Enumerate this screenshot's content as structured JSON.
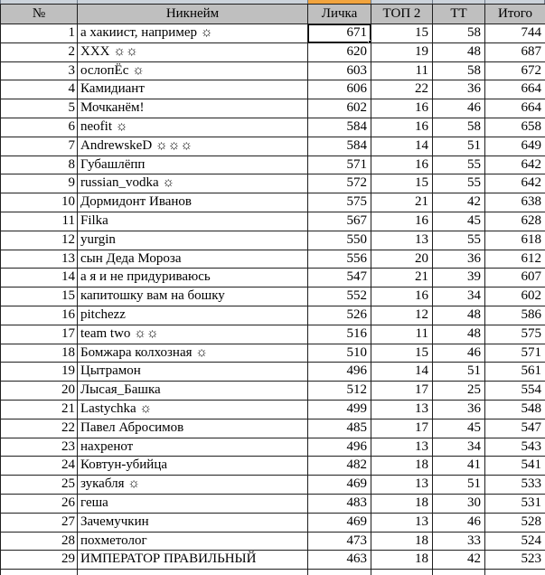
{
  "colors": {
    "header_bg": "#bfbfbf",
    "grid_border": "#1f1f1f",
    "strip_bg": "#ccd3db",
    "strip_tick": "#6e7987",
    "strip_highlight": "#f2a43d",
    "selection_border": "#000000",
    "cell_bg": "#ffffff",
    "text": "#000000"
  },
  "table": {
    "columns": [
      {
        "key": "num",
        "label": "№",
        "align": "right"
      },
      {
        "key": "nickname",
        "label": "Никнейм",
        "align": "left"
      },
      {
        "key": "lichka",
        "label": "Личка",
        "align": "right"
      },
      {
        "key": "top2",
        "label": "ТОП 2",
        "align": "right"
      },
      {
        "key": "tt",
        "label": "ТТ",
        "align": "right"
      },
      {
        "key": "total",
        "label": "Итого",
        "align": "right"
      }
    ],
    "rows": [
      {
        "num": 1,
        "nickname": "а хакиист, например ☼",
        "lichka": 671,
        "top2": 15,
        "tt": 58,
        "total": 744
      },
      {
        "num": 2,
        "nickname": "XXX ☼☼",
        "lichka": 620,
        "top2": 19,
        "tt": 48,
        "total": 687
      },
      {
        "num": 3,
        "nickname": "ослопЁс ☼",
        "lichka": 603,
        "top2": 11,
        "tt": 58,
        "total": 672
      },
      {
        "num": 4,
        "nickname": "Камидиант",
        "lichka": 606,
        "top2": 22,
        "tt": 36,
        "total": 664
      },
      {
        "num": 5,
        "nickname": "Мочканём!",
        "lichka": 602,
        "top2": 16,
        "tt": 46,
        "total": 664
      },
      {
        "num": 6,
        "nickname": "neofit ☼",
        "lichka": 584,
        "top2": 16,
        "tt": 58,
        "total": 658
      },
      {
        "num": 7,
        "nickname": "AndrewskeD ☼☼☼",
        "lichka": 584,
        "top2": 14,
        "tt": 51,
        "total": 649
      },
      {
        "num": 8,
        "nickname": "Губашлёпп",
        "lichka": 571,
        "top2": 16,
        "tt": 55,
        "total": 642
      },
      {
        "num": 9,
        "nickname": "russian_vodka ☼",
        "lichka": 572,
        "top2": 15,
        "tt": 55,
        "total": 642
      },
      {
        "num": 10,
        "nickname": "Дормидонт Иванов",
        "lichka": 575,
        "top2": 21,
        "tt": 42,
        "total": 638
      },
      {
        "num": 11,
        "nickname": "Filka",
        "lichka": 567,
        "top2": 16,
        "tt": 45,
        "total": 628
      },
      {
        "num": 12,
        "nickname": "yurgin",
        "lichka": 550,
        "top2": 13,
        "tt": 55,
        "total": 618
      },
      {
        "num": 13,
        "nickname": "сын Деда Мороза",
        "lichka": 556,
        "top2": 20,
        "tt": 36,
        "total": 612
      },
      {
        "num": 14,
        "nickname": "а я и не придуриваюсь",
        "lichka": 547,
        "top2": 21,
        "tt": 39,
        "total": 607
      },
      {
        "num": 15,
        "nickname": "капитошку вам на бошку",
        "lichka": 552,
        "top2": 16,
        "tt": 34,
        "total": 602
      },
      {
        "num": 16,
        "nickname": "pitchezz",
        "lichka": 526,
        "top2": 12,
        "tt": 48,
        "total": 586
      },
      {
        "num": 17,
        "nickname": "team two ☼☼",
        "lichka": 516,
        "top2": 11,
        "tt": 48,
        "total": 575
      },
      {
        "num": 18,
        "nickname": "Бомжара колхозная ☼",
        "lichka": 510,
        "top2": 15,
        "tt": 46,
        "total": 571
      },
      {
        "num": 19,
        "nickname": "Цытрамон",
        "lichka": 496,
        "top2": 14,
        "tt": 51,
        "total": 561
      },
      {
        "num": 20,
        "nickname": "Лысая_Башка",
        "lichka": 512,
        "top2": 17,
        "tt": 25,
        "total": 554
      },
      {
        "num": 21,
        "nickname": "Lastychka ☼",
        "lichka": 499,
        "top2": 13,
        "tt": 36,
        "total": 548
      },
      {
        "num": 22,
        "nickname": "Павел Абросимов",
        "lichka": 485,
        "top2": 17,
        "tt": 45,
        "total": 547
      },
      {
        "num": 23,
        "nickname": "нахренот",
        "lichka": 496,
        "top2": 13,
        "tt": 34,
        "total": 543
      },
      {
        "num": 24,
        "nickname": "Ковтун-убийца",
        "lichka": 482,
        "top2": 18,
        "tt": 41,
        "total": 541
      },
      {
        "num": 25,
        "nickname": "зукабля ☼",
        "lichka": 469,
        "top2": 13,
        "tt": 51,
        "total": 533
      },
      {
        "num": 26,
        "nickname": "геша",
        "lichka": 483,
        "top2": 18,
        "tt": 30,
        "total": 531
      },
      {
        "num": 27,
        "nickname": "Зачемучкин",
        "lichka": 469,
        "top2": 13,
        "tt": 46,
        "total": 528
      },
      {
        "num": 28,
        "nickname": "похметолог",
        "lichka": 473,
        "top2": 18,
        "tt": 33,
        "total": 524
      },
      {
        "num": 29,
        "nickname": "ИМПЕРАТОР ПРАВИЛЬНЫЙ",
        "lichka": 463,
        "top2": 18,
        "tt": 42,
        "total": 523
      },
      {
        "num": "",
        "nickname": "",
        "lichka": "",
        "top2": "",
        "tt": "",
        "total": ""
      }
    ]
  },
  "selection": {
    "row_index": 0,
    "column_key": "lichka",
    "value": "671"
  }
}
